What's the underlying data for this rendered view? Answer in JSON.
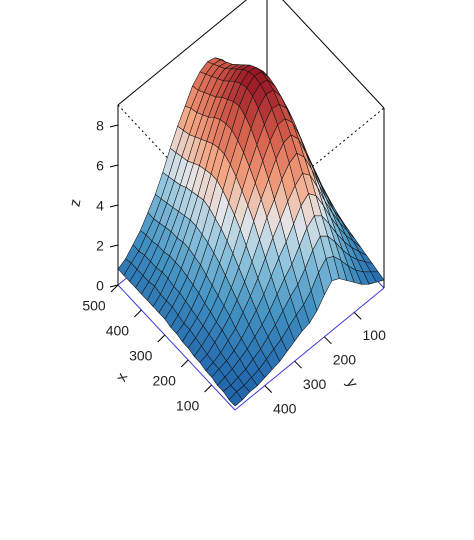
{
  "chart_data": {
    "type": "surface",
    "title": "",
    "xlabel": "x",
    "ylabel": "y",
    "zlabel": "z",
    "xlim": [
      0,
      500
    ],
    "ylim": [
      0,
      500
    ],
    "zlim": [
      0,
      9
    ],
    "x_ticks": [
      "100",
      "200",
      "300",
      "400",
      "500"
    ],
    "y_ticks": [
      "100",
      "200",
      "300",
      "400"
    ],
    "z_ticks": [
      "0",
      "2",
      "4",
      "6",
      "8"
    ],
    "grid_x": [
      0,
      25,
      50,
      75,
      100,
      125,
      150,
      175,
      200,
      225,
      250,
      275,
      300,
      325,
      350,
      375,
      400,
      425,
      450,
      475,
      500
    ],
    "grid_y": [
      0,
      25,
      50,
      75,
      100,
      125,
      150,
      175,
      200,
      225,
      250,
      275,
      300,
      325,
      350,
      375,
      400,
      425,
      450,
      475,
      500
    ],
    "z": [
      [
        0.4,
        0.6,
        0.8,
        1.1,
        1.5,
        1.9,
        2.3,
        2.5,
        2.1,
        1.6,
        1.3,
        1.2,
        1.0,
        0.8,
        0.6,
        0.5,
        0.4,
        0.3,
        0.3,
        0.2,
        0.2
      ],
      [
        0.5,
        0.8,
        1.1,
        1.5,
        2.0,
        2.6,
        3.1,
        3.3,
        2.9,
        2.3,
        1.9,
        1.7,
        1.4,
        1.1,
        0.9,
        0.7,
        0.5,
        0.4,
        0.3,
        0.3,
        0.2
      ],
      [
        0.6,
        1.0,
        1.4,
        1.9,
        2.5,
        3.2,
        3.8,
        4.1,
        3.7,
        3.1,
        2.6,
        2.3,
        1.9,
        1.5,
        1.2,
        0.9,
        0.7,
        0.5,
        0.4,
        0.3,
        0.3
      ],
      [
        0.7,
        1.2,
        1.7,
        2.3,
        3.0,
        3.8,
        4.5,
        4.8,
        4.5,
        3.9,
        3.3,
        2.9,
        2.4,
        1.9,
        1.5,
        1.2,
        0.9,
        0.7,
        0.5,
        0.4,
        0.3
      ],
      [
        0.8,
        1.4,
        2.0,
        2.7,
        3.5,
        4.4,
        5.2,
        5.6,
        5.3,
        4.7,
        4.1,
        3.6,
        3.0,
        2.4,
        1.9,
        1.5,
        1.1,
        0.8,
        0.6,
        0.5,
        0.4
      ],
      [
        0.9,
        1.6,
        2.3,
        3.1,
        4.0,
        5.0,
        5.9,
        6.3,
        6.0,
        5.5,
        4.9,
        4.3,
        3.6,
        2.9,
        2.3,
        1.8,
        1.3,
        1.0,
        0.7,
        0.5,
        0.4
      ],
      [
        1.0,
        1.8,
        2.6,
        3.5,
        4.5,
        5.6,
        6.5,
        7.0,
        6.8,
        6.3,
        5.6,
        5.0,
        4.2,
        3.4,
        2.7,
        2.1,
        1.6,
        1.2,
        0.9,
        0.6,
        0.5
      ],
      [
        1.1,
        2.0,
        2.9,
        3.9,
        5.0,
        6.1,
        7.1,
        7.6,
        7.5,
        7.0,
        6.3,
        5.6,
        4.8,
        3.9,
        3.1,
        2.4,
        1.8,
        1.3,
        1.0,
        0.7,
        0.5
      ],
      [
        1.2,
        2.2,
        3.2,
        4.3,
        5.4,
        6.6,
        7.6,
        8.1,
        8.1,
        7.6,
        6.9,
        6.1,
        5.3,
        4.4,
        3.5,
        2.7,
        2.0,
        1.5,
        1.1,
        0.8,
        0.6
      ],
      [
        1.3,
        2.4,
        3.5,
        4.6,
        5.8,
        7.0,
        8.0,
        8.5,
        8.6,
        8.1,
        7.4,
        6.6,
        5.7,
        4.8,
        3.8,
        3.0,
        2.2,
        1.6,
        1.2,
        0.9,
        0.6
      ],
      [
        1.4,
        2.5,
        3.7,
        4.9,
        6.1,
        7.3,
        8.3,
        8.9,
        9.0,
        8.6,
        7.9,
        7.0,
        6.1,
        5.1,
        4.1,
        3.2,
        2.4,
        1.8,
        1.3,
        0.9,
        0.7
      ],
      [
        1.5,
        2.6,
        3.8,
        5.1,
        6.3,
        7.5,
        8.5,
        9.1,
        9.2,
        8.9,
        8.2,
        7.3,
        6.4,
        5.4,
        4.3,
        3.4,
        2.6,
        1.9,
        1.4,
        1.0,
        0.7
      ],
      [
        1.6,
        2.7,
        3.9,
        5.2,
        6.4,
        7.6,
        8.6,
        9.2,
        9.3,
        9.0,
        8.4,
        7.5,
        6.6,
        5.6,
        4.5,
        3.5,
        2.7,
        2.0,
        1.5,
        1.1,
        0.8
      ],
      [
        1.6,
        2.7,
        3.9,
        5.2,
        6.5,
        7.6,
        8.6,
        9.1,
        9.2,
        8.9,
        8.3,
        7.5,
        6.6,
        5.6,
        4.6,
        3.6,
        2.8,
        2.1,
        1.5,
        1.1,
        0.8
      ],
      [
        1.6,
        2.7,
        3.9,
        5.1,
        6.4,
        7.5,
        8.4,
        8.9,
        9.0,
        8.7,
        8.1,
        7.4,
        6.5,
        5.5,
        4.5,
        3.6,
        2.8,
        2.1,
        1.6,
        1.1,
        0.8
      ],
      [
        1.6,
        2.6,
        3.8,
        5.0,
        6.2,
        7.3,
        8.1,
        8.6,
        8.7,
        8.4,
        7.9,
        7.2,
        6.3,
        5.4,
        4.4,
        3.5,
        2.7,
        2.1,
        1.6,
        1.2,
        0.8
      ],
      [
        1.6,
        2.6,
        3.7,
        4.9,
        6.0,
        7.0,
        7.8,
        8.3,
        8.4,
        8.1,
        7.6,
        6.9,
        6.1,
        5.2,
        4.3,
        3.4,
        2.7,
        2.0,
        1.5,
        1.1,
        0.8
      ],
      [
        1.7,
        2.6,
        3.6,
        4.7,
        5.8,
        6.8,
        7.6,
        8.0,
        8.1,
        7.9,
        7.4,
        6.7,
        5.9,
        5.0,
        4.1,
        3.3,
        2.6,
        2.0,
        1.5,
        1.1,
        0.8
      ],
      [
        1.8,
        2.6,
        3.6,
        4.6,
        5.6,
        6.5,
        7.3,
        7.8,
        7.9,
        7.7,
        7.2,
        6.5,
        5.7,
        4.9,
        4.0,
        3.2,
        2.5,
        1.9,
        1.5,
        1.1,
        0.8
      ],
      [
        1.9,
        2.7,
        3.6,
        4.5,
        5.5,
        6.4,
        7.1,
        7.6,
        7.7,
        7.5,
        7.0,
        6.4,
        5.6,
        4.8,
        3.9,
        3.1,
        2.4,
        1.9,
        1.4,
        1.1,
        0.8
      ],
      [
        2.0,
        2.8,
        3.6,
        4.5,
        5.4,
        6.3,
        7.0,
        7.4,
        7.5,
        7.3,
        6.9,
        6.2,
        5.5,
        4.7,
        3.8,
        3.0,
        2.4,
        1.8,
        1.4,
        1.0,
        0.8
      ]
    ]
  }
}
